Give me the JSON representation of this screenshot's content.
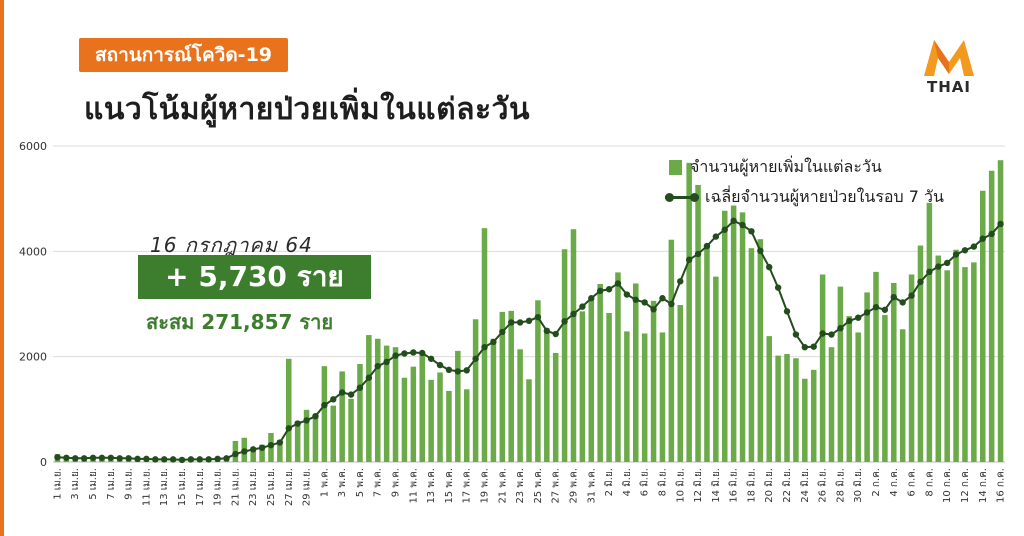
{
  "header": {
    "tag": "สถานการณ์โควิด-19",
    "title": "แนวโน้มผู้หายป่วยเพิ่มในแต่ละวัน"
  },
  "logo": {
    "text": "THAI",
    "icon": "mthai-m-logo"
  },
  "callout": {
    "date": "16 กรกฎาคม 64",
    "daily": "+ 5,730 ราย",
    "cumulative": "สะสม 271,857 ราย"
  },
  "colors": {
    "accent": "#e8731c",
    "bar": "#6aaa48",
    "line": "#234d1c",
    "callout_box": "#3d7d2e"
  },
  "chart_data": {
    "type": "bar",
    "ylim": [
      0,
      6000
    ],
    "yticks": [
      0,
      2000,
      4000,
      6000
    ],
    "grid": true,
    "legend_position": "top-right",
    "categories": [
      "1 เม.ย.",
      "2 เม.ย.",
      "3 เม.ย.",
      "4 เม.ย.",
      "5 เม.ย.",
      "6 เม.ย.",
      "7 เม.ย.",
      "8 เม.ย.",
      "9 เม.ย.",
      "10 เม.ย.",
      "11 เม.ย.",
      "12 เม.ย.",
      "13 เม.ย.",
      "14 เม.ย.",
      "15 เม.ย.",
      "16 เม.ย.",
      "17 เม.ย.",
      "18 เม.ย.",
      "19 เม.ย.",
      "20 เม.ย.",
      "21 เม.ย.",
      "22 เม.ย.",
      "23 เม.ย.",
      "24 เม.ย.",
      "25 เม.ย.",
      "26 เม.ย.",
      "27 เม.ย.",
      "28 เม.ย.",
      "29 เม.ย.",
      "30 เม.ย.",
      "1 พ.ค.",
      "2 พ.ค.",
      "3 พ.ค.",
      "4 พ.ค.",
      "5 พ.ค.",
      "6 พ.ค.",
      "7 พ.ค.",
      "8 พ.ค.",
      "9 พ.ค.",
      "10 พ.ค.",
      "11 พ.ค.",
      "12 พ.ค.",
      "13 พ.ค.",
      "14 พ.ค.",
      "15 พ.ค.",
      "16 พ.ค.",
      "17 พ.ค.",
      "18 พ.ค.",
      "19 พ.ค.",
      "20 พ.ค.",
      "21 พ.ค.",
      "22 พ.ค.",
      "23 พ.ค.",
      "24 พ.ค.",
      "25 พ.ค.",
      "26 พ.ค.",
      "27 พ.ค.",
      "28 พ.ค.",
      "29 พ.ค.",
      "30 พ.ค.",
      "31 พ.ค.",
      "1 มิ.ย.",
      "2 มิ.ย.",
      "3 มิ.ย.",
      "4 มิ.ย.",
      "5 มิ.ย.",
      "6 มิ.ย.",
      "7 มิ.ย.",
      "8 มิ.ย.",
      "9 มิ.ย.",
      "10 มิ.ย.",
      "11 มิ.ย.",
      "12 มิ.ย.",
      "13 มิ.ย.",
      "14 มิ.ย.",
      "15 มิ.ย.",
      "16 มิ.ย.",
      "17 มิ.ย.",
      "18 มิ.ย.",
      "19 มิ.ย.",
      "20 มิ.ย.",
      "21 มิ.ย.",
      "22 มิ.ย.",
      "23 มิ.ย.",
      "24 มิ.ย.",
      "25 มิ.ย.",
      "26 มิ.ย.",
      "27 มิ.ย.",
      "28 มิ.ย.",
      "29 มิ.ย.",
      "30 มิ.ย.",
      "1 ก.ค.",
      "2 ก.ค.",
      "3 ก.ค.",
      "4 ก.ค.",
      "5 ก.ค.",
      "6 ก.ค.",
      "7 ก.ค.",
      "8 ก.ค.",
      "9 ก.ค.",
      "10 ก.ค.",
      "11 ก.ค.",
      "12 ก.ค.",
      "13 ก.ค.",
      "14 ก.ค.",
      "15 ก.ค.",
      "16 ก.ค."
    ],
    "label_every": 2,
    "series": [
      {
        "name": "จำนวนผู้หายเพิ่มในแต่ละวัน",
        "type": "bar",
        "values": [
          150,
          70,
          90,
          80,
          100,
          90,
          110,
          80,
          70,
          80,
          60,
          50,
          40,
          50,
          40,
          50,
          60,
          80,
          90,
          100,
          400,
          460,
          260,
          330,
          550,
          420,
          1960,
          780,
          990,
          880,
          1820,
          1070,
          1720,
          1200,
          1860,
          2410,
          2340,
          2210,
          2180,
          1600,
          1810,
          2050,
          1560,
          1700,
          1350,
          2110,
          1380,
          2710,
          4440,
          2340,
          2850,
          2870,
          2140,
          1570,
          3070,
          2540,
          2070,
          4040,
          4420,
          2860,
          3080,
          3380,
          2830,
          3600,
          2480,
          3390,
          2440,
          3060,
          2460,
          4220,
          2980,
          5680,
          5260,
          4110,
          3520,
          4770,
          4870,
          4740,
          4060,
          4230,
          2390,
          2020,
          2050,
          1970,
          1580,
          1750,
          3560,
          2180,
          3330,
          2770,
          2460,
          3220,
          3610,
          2790,
          3400,
          2520,
          3560,
          4110,
          4920,
          3920,
          3640,
          4030,
          3700,
          3790,
          5150,
          5530,
          5730
        ]
      },
      {
        "name": "เฉลี่ยจำนวนผู้หายป่วยในรอบ 7 วัน",
        "type": "line",
        "values": [
          90,
          80,
          70,
          70,
          80,
          80,
          80,
          70,
          70,
          60,
          60,
          50,
          50,
          50,
          40,
          50,
          50,
          50,
          60,
          70,
          150,
          200,
          240,
          270,
          320,
          370,
          640,
          730,
          790,
          870,
          1080,
          1190,
          1320,
          1280,
          1410,
          1600,
          1820,
          1900,
          2020,
          2060,
          2080,
          2070,
          1960,
          1840,
          1750,
          1720,
          1740,
          1960,
          2180,
          2280,
          2470,
          2650,
          2650,
          2680,
          2750,
          2490,
          2430,
          2670,
          2810,
          2950,
          3110,
          3250,
          3280,
          3390,
          3180,
          3080,
          3030,
          2900,
          3110,
          3000,
          3430,
          3840,
          3950,
          4100,
          4280,
          4410,
          4580,
          4500,
          4380,
          4010,
          3700,
          3310,
          2860,
          2420,
          2180,
          2190,
          2440,
          2420,
          2540,
          2680,
          2740,
          2840,
          2940,
          2890,
          3130,
          3030,
          3160,
          3420,
          3610,
          3710,
          3780,
          3940,
          4020,
          4090,
          4240,
          4330,
          4520
        ]
      }
    ]
  }
}
